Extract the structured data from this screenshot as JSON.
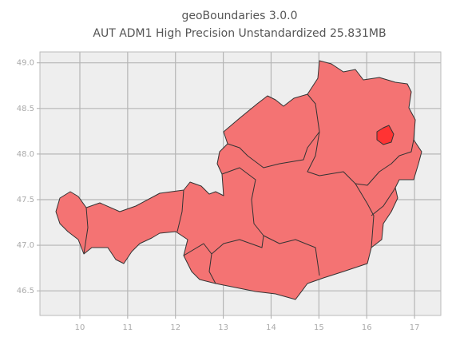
{
  "chart_data": {
    "type": "map",
    "title": "geoBoundaries 3.0.0",
    "subtitle": "AUT ADM1 High Precision Unstandardized 25.831MB",
    "xlim": [
      9.165,
      17.55
    ],
    "ylim": [
      46.23,
      49.12
    ],
    "xticks": [
      10,
      11,
      12,
      13,
      14,
      15,
      16,
      17
    ],
    "yticks": [
      {
        "value": 46.5,
        "label": "46.5"
      },
      {
        "value": 47,
        "label": "47.0"
      },
      {
        "value": 47.5,
        "label": "47.5"
      },
      {
        "value": 48,
        "label": "48.0"
      },
      {
        "value": 48.5,
        "label": "48.5"
      },
      {
        "value": 49,
        "label": "49.0"
      }
    ],
    "grid": true,
    "color": "#f47373"
  }
}
